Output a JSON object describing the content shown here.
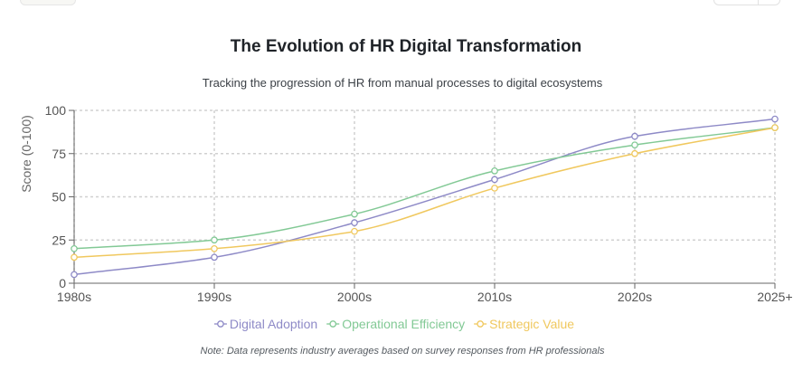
{
  "header": {
    "title": "The Evolution of HR Digital Transformation",
    "subtitle": "Tracking the progression of HR from manual processes to digital ecosystems"
  },
  "footer": {
    "note": "Note: Data represents industry averages based on survey responses from HR professionals"
  },
  "colors": {
    "digital_adoption": "#8e8ac7",
    "operational_efficiency": "#82c995",
    "strategic_value": "#f0c85e",
    "grid": "#d0d0d0",
    "axis": "#666666"
  },
  "chart_data": {
    "type": "line",
    "title": "The Evolution of HR Digital Transformation",
    "xlabel": "",
    "ylabel": "Score (0-100)",
    "ylim": [
      0,
      100
    ],
    "yticks": [
      0,
      25,
      50,
      75,
      100
    ],
    "grid": true,
    "legend_position": "bottom",
    "categories": [
      "1980s",
      "1990s",
      "2000s",
      "2010s",
      "2020s",
      "2025+"
    ],
    "series": [
      {
        "name": "Digital Adoption",
        "color_key": "digital_adoption",
        "values": [
          5,
          15,
          35,
          60,
          85,
          95
        ]
      },
      {
        "name": "Operational Efficiency",
        "color_key": "operational_efficiency",
        "values": [
          20,
          25,
          40,
          65,
          80,
          90
        ]
      },
      {
        "name": "Strategic Value",
        "color_key": "strategic_value",
        "values": [
          15,
          20,
          30,
          55,
          75,
          90
        ]
      }
    ]
  }
}
